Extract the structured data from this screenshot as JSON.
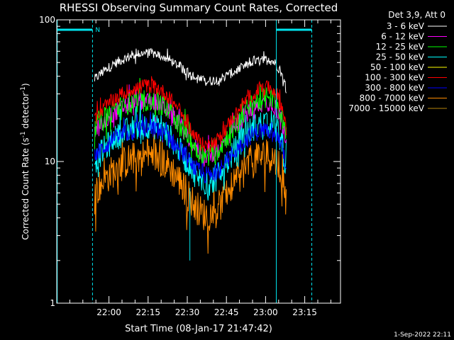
{
  "chart_data": {
    "type": "line",
    "title": "RHESSI Observing Summary Count Rates, Corrected",
    "xlabel": "Start Time (08-Jan-17 21:47:42)",
    "ylabel_main": "Corrected Count Rate (s",
    "ylabel_sup1": "-1",
    "ylabel_mid": " detector",
    "ylabel_sup2": "-1",
    "ylabel_end": ")",
    "yscale": "log",
    "ylim": [
      1,
      100
    ],
    "xlim_minutes": [
      -7.7,
      101
    ],
    "x_ticks": [
      {
        "label": "22:00",
        "minute": 12.3
      },
      {
        "label": "22:15",
        "minute": 27.3
      },
      {
        "label": "22:30",
        "minute": 42.3
      },
      {
        "label": "22:45",
        "minute": 57.3
      },
      {
        "label": "23:00",
        "minute": 72.3
      },
      {
        "label": "23:15",
        "minute": 87.3
      }
    ],
    "y_tick_labels": [
      {
        "label": "100",
        "value": 100
      },
      {
        "label": "10",
        "value": 10
      },
      {
        "label": "1",
        "value": 1
      }
    ],
    "legend_header": "Det 3,9, Att 0",
    "legend_position": "top-right",
    "footer_date": "1-Sep-2022 22:11",
    "data_start_minute": 6.8,
    "data_end_minute": 80.2,
    "series": [
      {
        "name": "3 - 6 keV",
        "color": "#ffffff",
        "base": 38,
        "peak1": 58,
        "peak2": 52,
        "trough": 37,
        "noise": 0.08
      },
      {
        "name": "6 - 12 keV",
        "color": "#ff00ff",
        "base": 16,
        "peak1": 27,
        "peak2": 26,
        "trough": 11,
        "noise": 0.15
      },
      {
        "name": "12 - 25 keV",
        "color": "#00ff00",
        "base": 18,
        "peak1": 27,
        "peak2": 28,
        "trough": 11,
        "noise": 0.18
      },
      {
        "name": "25 - 50 keV",
        "color": "#00ffff",
        "base": 10,
        "peak1": 18,
        "peak2": 19,
        "trough": 7,
        "noise": 0.22
      },
      {
        "name": "50 - 100 keV",
        "color": "#ffff00",
        "base": 0,
        "peak1": 0,
        "peak2": 0,
        "trough": 0,
        "noise": 0
      },
      {
        "name": "100 - 300 keV",
        "color": "#ff0000",
        "base": 20,
        "peak1": 34,
        "peak2": 33,
        "trough": 13,
        "noise": 0.12
      },
      {
        "name": "300 - 800 keV",
        "color": "#0000ff",
        "base": 11,
        "peak1": 17,
        "peak2": 17,
        "trough": 8,
        "noise": 0.15
      },
      {
        "name": "800 - 7000 keV",
        "color": "#ff8c00",
        "base": 6,
        "peak1": 11,
        "peak2": 11,
        "trough": 4.2,
        "noise": 0.28
      },
      {
        "name": "7000 - 15000 keV",
        "color": "#b8860b",
        "base": 0,
        "peak1": 0,
        "peak2": 0,
        "trough": 0,
        "noise": 0
      }
    ],
    "flag_bars": [
      {
        "label": "N",
        "start_minute": -7.7,
        "end_minute": 6.0
      },
      {
        "label": "",
        "start_minute": 76.4,
        "end_minute": 90.0
      }
    ],
    "vertical_lines": [
      {
        "minute": -7.5,
        "style": "solid"
      },
      {
        "minute": 6.0,
        "style": "dashed"
      },
      {
        "minute": 76.4,
        "style": "solid"
      },
      {
        "minute": 90.0,
        "style": "dashed"
      }
    ],
    "colors": {
      "background": "#000000",
      "axes": "#ffffff",
      "flag": "#00e5ee"
    }
  }
}
